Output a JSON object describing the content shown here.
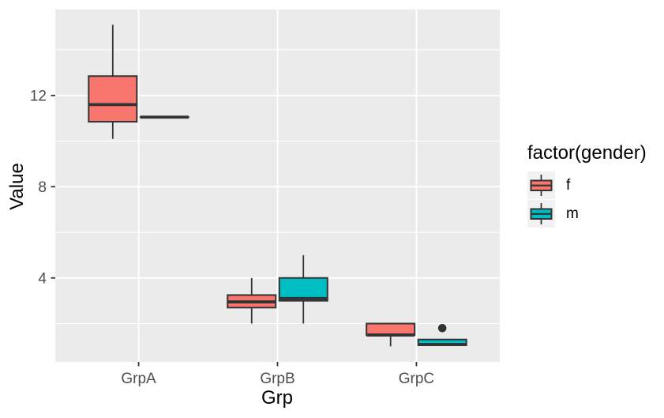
{
  "figure": {
    "background": "#FFFFFF",
    "panel_background": "#EBEBEB",
    "grid_color": "#FFFFFF",
    "stroke_color": "#333333",
    "tick_label_color": "#4D4D4D",
    "axis_title_color": "#000000",
    "legend_key_background": "#F2F2F2"
  },
  "chart_data": {
    "type": "boxplot",
    "title": "",
    "xlabel": "Grp",
    "ylabel": "Value",
    "categories": [
      "GrpA",
      "GrpB",
      "GrpC"
    ],
    "y_major_ticks": [
      4,
      8,
      12
    ],
    "y_minor_ticks": [
      2,
      6,
      10,
      14
    ],
    "ylim": [
      0.32,
      15.77
    ],
    "grid": "on",
    "legend_position": "right",
    "legend": {
      "title": "factor(gender)",
      "entries": [
        {
          "label": "f",
          "color": "#F8766D"
        },
        {
          "label": "m",
          "color": "#00BFC4"
        }
      ]
    },
    "series": [
      {
        "name": "f",
        "color": "#F8766D",
        "boxes": [
          {
            "category": "GrpA",
            "low": 10.1,
            "q1": 10.85,
            "median": 11.6,
            "q3": 12.85,
            "high": 15.1,
            "outliers": []
          },
          {
            "category": "GrpB",
            "low": 2.0,
            "q1": 2.7,
            "median": 2.95,
            "q3": 3.25,
            "high": 4.0,
            "outliers": []
          },
          {
            "category": "GrpC",
            "low": 1.0,
            "q1": 1.5,
            "median": 1.5,
            "q3": 2.0,
            "high": 2.0,
            "outliers": []
          }
        ]
      },
      {
        "name": "m",
        "color": "#00BFC4",
        "boxes": [
          {
            "category": "GrpA",
            "low": 11.05,
            "q1": 11.05,
            "median": 11.05,
            "q3": 11.05,
            "high": 11.05,
            "outliers": []
          },
          {
            "category": "GrpB",
            "low": 2.0,
            "q1": 3.0,
            "median": 3.1,
            "q3": 4.0,
            "high": 5.0,
            "outliers": []
          },
          {
            "category": "GrpC",
            "low": 1.05,
            "q1": 1.05,
            "median": 1.08,
            "q3": 1.3,
            "high": 1.3,
            "outliers": [
              1.8
            ]
          }
        ]
      }
    ]
  }
}
